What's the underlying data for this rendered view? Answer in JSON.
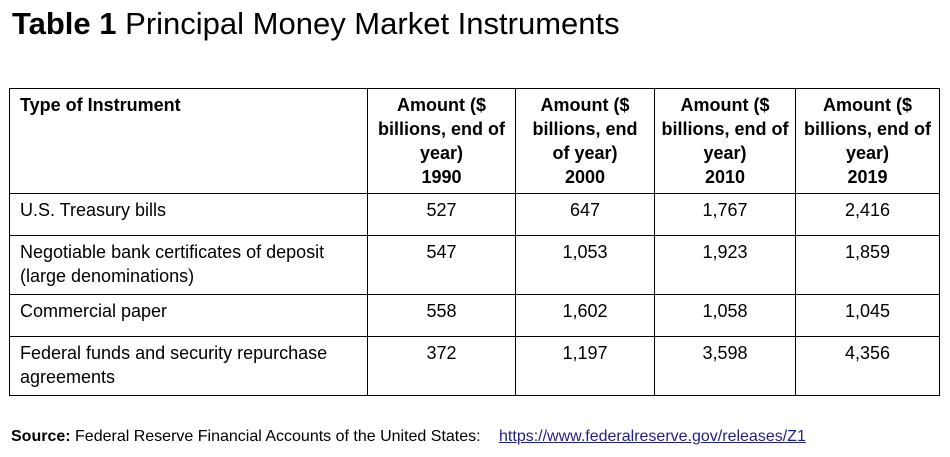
{
  "title": {
    "number": "Table 1",
    "text": "Principal Money Market Instruments"
  },
  "table": {
    "headers": {
      "type": "Type of Instrument",
      "amount_label": "Amount ($ billions, end of year)",
      "years": [
        "1990",
        "2000",
        "2010",
        "2019"
      ]
    },
    "rows": [
      {
        "name": "U.S. Treasury bills",
        "values": [
          "527",
          "647",
          "1,767",
          "2,416"
        ]
      },
      {
        "name": "Negotiable bank certificates of deposit (large denominations)",
        "values": [
          "547",
          "1,053",
          "1,923",
          "1,859"
        ]
      },
      {
        "name": "Commercial paper",
        "values": [
          "558",
          "1,602",
          "1,058",
          "1,045"
        ]
      },
      {
        "name": "Federal funds and security repurchase agreements",
        "values": [
          "372",
          "1,197",
          "3,598",
          "4,356"
        ]
      }
    ]
  },
  "source": {
    "label": "Source:",
    "text": "Federal Reserve Financial Accounts of the United States:",
    "link": "https://www.federalreserve.gov/releases/Z1"
  },
  "colors": {
    "text": "#000000",
    "link": "#1f1f8f",
    "border": "#000000"
  }
}
